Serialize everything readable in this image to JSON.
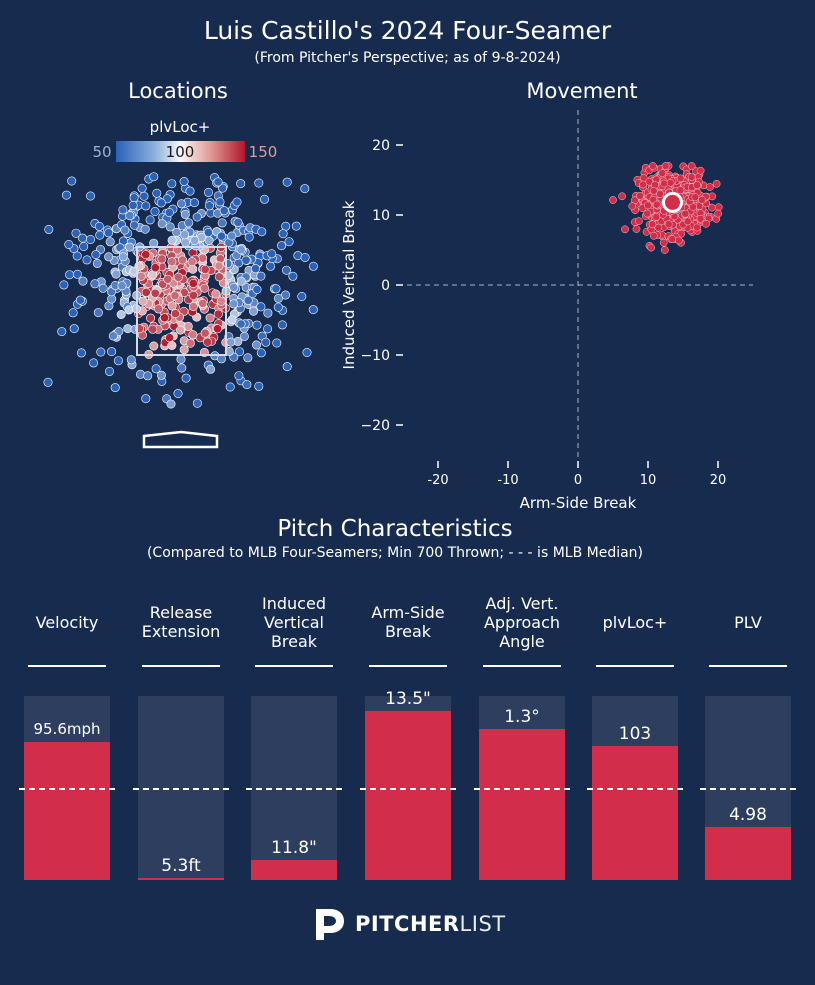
{
  "header": {
    "title": "Luis Castillo's 2024 Four-Seamer",
    "subtitle": "(From Pitcher's Perspective; as of 9-8-2024)"
  },
  "colors": {
    "background": "#172b4f",
    "pitch_red": "#d22d49",
    "bar_track": "#2e3e5f",
    "cmap_low": "#3661ad",
    "cmap_mid": "#f5f5f5",
    "cmap_high": "#b2182b"
  },
  "locations": {
    "title": "Locations",
    "colorbar_label": "plvLoc+",
    "colorbar_min": "50",
    "colorbar_mid": "100",
    "colorbar_max": "150"
  },
  "movement": {
    "title": "Movement"
  },
  "pitch_characteristics": {
    "title": "Pitch Characteristics",
    "subtitle": "(Compared to MLB Four-Seamers; Min 700 Thrown; - - - is MLB Median)"
  },
  "logo": {
    "brand_bold": "PITCHER",
    "brand_light": "LIST"
  },
  "chart_data": [
    {
      "type": "scatter",
      "name": "locations",
      "title": "Locations",
      "colorbar": {
        "label": "plvLoc+",
        "range": [
          50,
          150
        ],
        "center": 100
      },
      "series": [],
      "pitch_count_approx": 600,
      "strike_zone": true,
      "home_plate": true
    },
    {
      "type": "scatter",
      "name": "movement",
      "title": "Movement",
      "xlabel": "Arm-Side Break",
      "ylabel": "Induced Vertical Break",
      "xlim": [
        -25,
        25
      ],
      "ylim": [
        -25,
        25
      ],
      "xticks": [
        -20,
        -10,
        0,
        10,
        20
      ],
      "yticks": [
        -20,
        -10,
        0,
        10,
        20
      ],
      "reference_lines": [
        0
      ],
      "average": {
        "x": 13.5,
        "y": 11.8
      },
      "cluster": {
        "x_range": [
          5,
          21
        ],
        "y_range": [
          5,
          17
        ]
      }
    },
    {
      "type": "bar",
      "name": "pitch_characteristics",
      "title": "Pitch Characteristics",
      "categories": [
        "Velocity",
        "Release\nExtension",
        "Induced\nVertical\nBreak",
        "Arm-Side\nBreak",
        "Adj. Vert.\nApproach\nAngle",
        "plvLoc+",
        "PLV"
      ],
      "values": [
        "95.6mph",
        "5.3ft",
        "11.8\"",
        "13.5\"",
        "1.3°",
        "103",
        "4.98"
      ],
      "percentiles": [
        0.75,
        0.01,
        0.11,
        0.92,
        0.82,
        0.73,
        0.29
      ],
      "median_line": 0.5
    }
  ]
}
